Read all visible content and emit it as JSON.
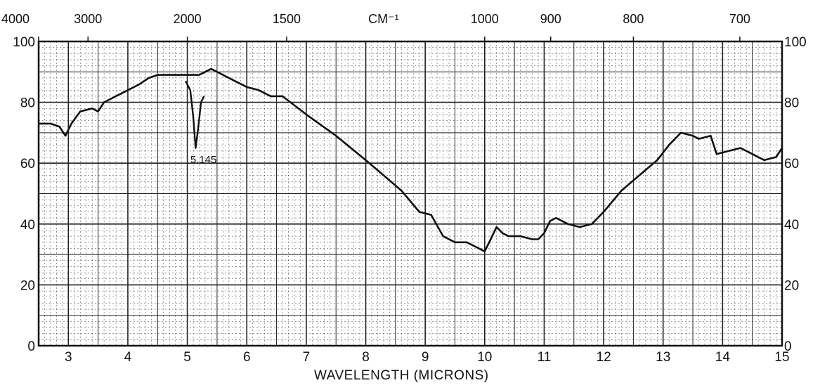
{
  "chart_data": {
    "type": "line",
    "xlabel": "WAVELENGTH (MICRONS)",
    "top_axis_label": "CM⁻¹",
    "xlim": [
      2.5,
      15
    ],
    "ylim": [
      0,
      100
    ],
    "x_ticks": [
      3,
      4,
      5,
      6,
      7,
      8,
      9,
      10,
      11,
      12,
      13,
      14,
      15
    ],
    "x_tick_labels": [
      "3",
      "4",
      "5",
      "6",
      "7",
      "8",
      "9",
      "10",
      "11",
      "12",
      "13",
      "14",
      "15"
    ],
    "y_ticks": [
      0,
      20,
      40,
      60,
      80,
      100
    ],
    "y_tick_labels": [
      "0",
      "20",
      "40",
      "60",
      "80",
      "100"
    ],
    "top_ticks": [
      {
        "label": "4000",
        "microns": 2.5
      },
      {
        "label": "3000",
        "microns": 3.33
      },
      {
        "label": "2000",
        "microns": 5.0
      },
      {
        "label": "1500",
        "microns": 6.67
      },
      {
        "label": "1000",
        "microns": 10.0
      },
      {
        "label": "900",
        "microns": 11.11
      },
      {
        "label": "800",
        "microns": 12.5
      },
      {
        "label": "700",
        "microns": 14.29
      }
    ],
    "grid": true,
    "series": [
      {
        "x": [
          2.5,
          2.7,
          2.85,
          2.95,
          3.05,
          3.2,
          3.4,
          3.5,
          3.6,
          3.8,
          4.0,
          4.2,
          4.35,
          4.5,
          4.7,
          5.0,
          5.2,
          5.3,
          5.4,
          5.6,
          5.8,
          6.0,
          6.2,
          6.4,
          6.6,
          6.8,
          7.0,
          7.5,
          8.0,
          8.3,
          8.6,
          8.9,
          9.1,
          9.3,
          9.5,
          9.7,
          9.8,
          9.9,
          10.0,
          10.1,
          10.2,
          10.3,
          10.4,
          10.6,
          10.8,
          10.9,
          11.0,
          11.1,
          11.2,
          11.4,
          11.6,
          11.8,
          12.0,
          12.3,
          12.6,
          12.9,
          13.1,
          13.3,
          13.5,
          13.6,
          13.8,
          13.9,
          14.1,
          14.3,
          14.5,
          14.7,
          14.9,
          15.0
        ],
        "y": [
          73,
          73,
          72,
          69,
          73,
          77,
          78,
          77,
          80,
          82,
          84,
          86,
          88,
          89,
          89,
          89,
          89,
          90,
          91,
          89,
          87,
          85,
          84,
          82,
          82,
          79,
          76,
          69,
          61,
          56,
          51,
          44,
          43,
          36,
          34,
          34,
          33,
          32,
          31,
          35,
          39,
          37,
          36,
          36,
          35,
          35,
          37,
          41,
          42,
          40,
          39,
          40,
          44,
          51,
          56,
          61,
          66,
          70,
          69,
          68,
          69,
          63,
          64,
          65,
          63,
          61,
          62,
          65
        ]
      }
    ],
    "dip": {
      "label": "5.145",
      "x": [
        4.97,
        5.05,
        5.1,
        5.14,
        5.18,
        5.23,
        5.28
      ],
      "y": [
        87,
        84,
        75,
        65,
        71,
        80,
        82
      ]
    }
  }
}
